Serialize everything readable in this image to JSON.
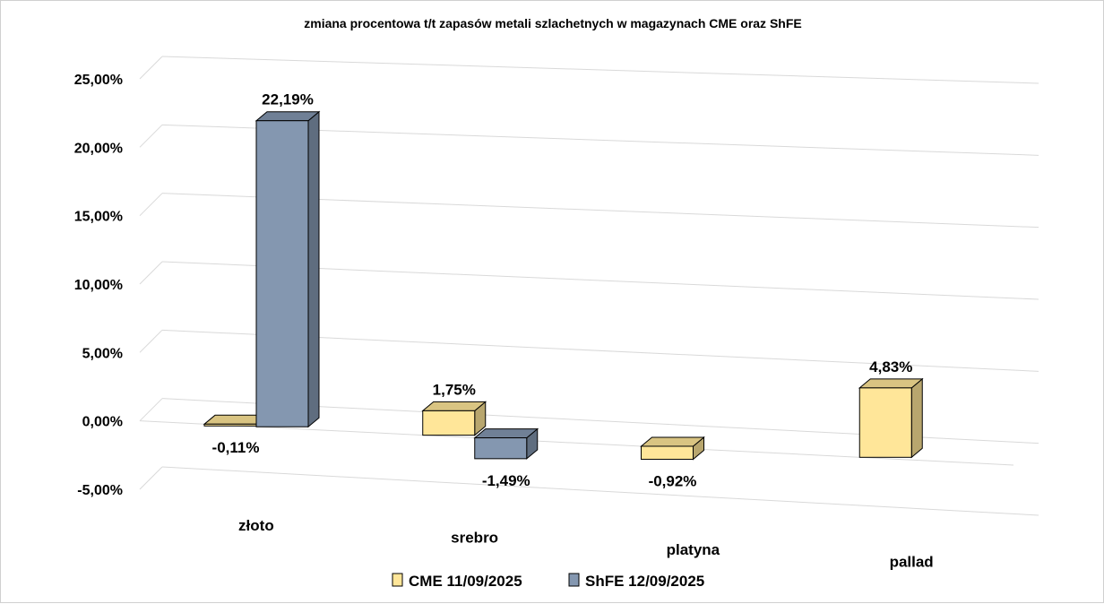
{
  "chart_data": {
    "type": "bar",
    "title": "zmiana procentowa t/t zapasów metali szlachetnych w magazynach CME oraz ShFE",
    "categories": [
      "złoto",
      "srebro",
      "platyna",
      "pallad"
    ],
    "series": [
      {
        "name": "CME 11/09/2025",
        "color": "#FFE699",
        "values": [
          -0.11,
          1.75,
          -0.92,
          4.83
        ],
        "labels": [
          "-0,11%",
          "1,75%",
          "-0,92%",
          "4,83%"
        ]
      },
      {
        "name": "ShFE 12/09/2025",
        "color": "#8497B0",
        "values": [
          22.19,
          -1.49,
          null,
          null
        ],
        "labels": [
          "22,19%",
          "-1,49%",
          null,
          null
        ]
      }
    ],
    "y_ticks": [
      "25,00%",
      "20,00%",
      "15,00%",
      "10,00%",
      "5,00%",
      "0,00%",
      "-5,00%"
    ],
    "ylim": [
      -5,
      25
    ],
    "grid": true,
    "legend": "bottom",
    "three_d": true
  }
}
